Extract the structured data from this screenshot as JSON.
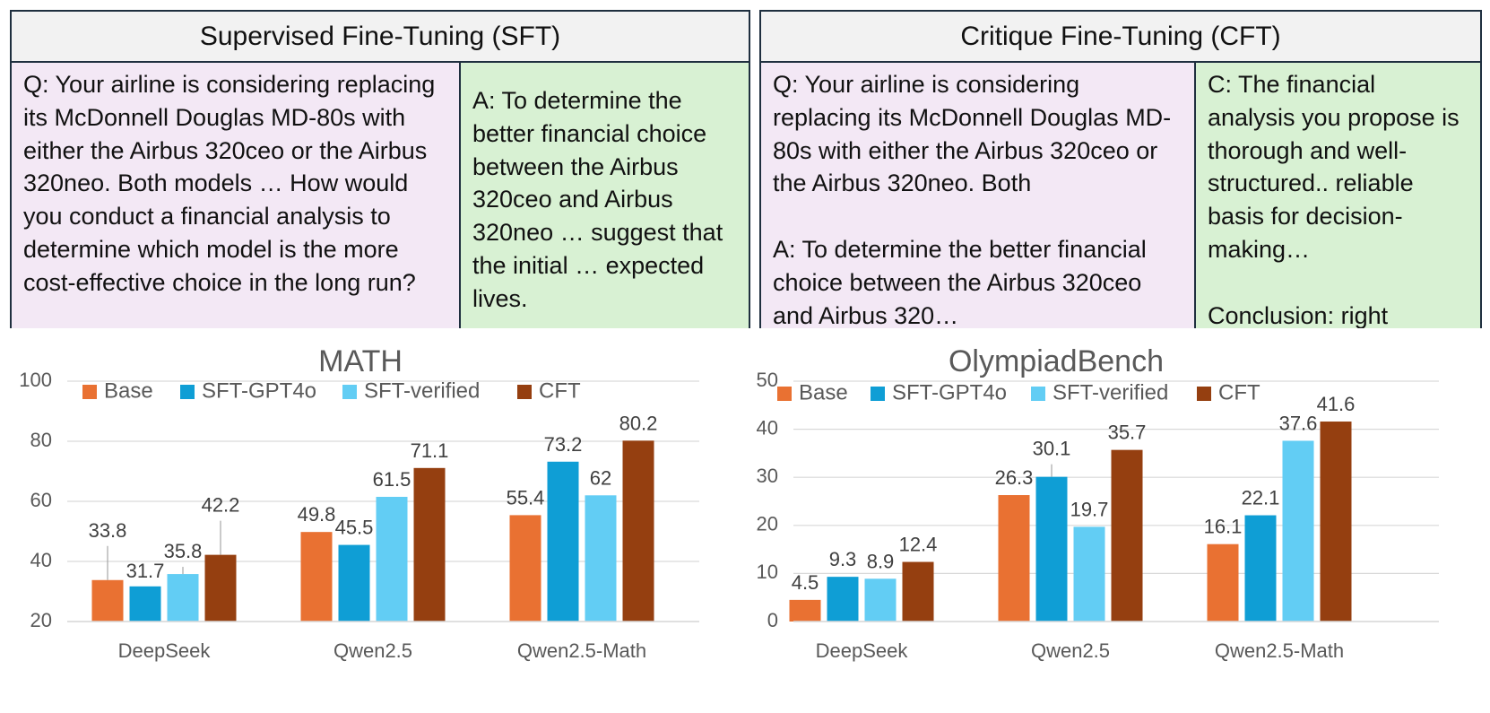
{
  "sft": {
    "title": "Supervised Fine-Tuning (SFT)",
    "question": "Q: Your airline is considering replacing its McDonnell Douglas MD-80s with either the Airbus 320ceo or the Airbus 320neo. Both models …  How would you conduct a financial analysis to determine which model is the more cost-effective choice in the long run?",
    "answer": "A: To determine the better financial choice between the Airbus 320ceo and Airbus 320neo … suggest that the initial … expected lives."
  },
  "cft": {
    "title": "Critique Fine-Tuning (CFT)",
    "question": "Q: Your airline is considering replacing its McDonnell Douglas MD-80s with either the Airbus 320ceo or the Airbus 320neo. Both\n\nA: To determine the better financial choice between the Airbus 320ceo and Airbus 320…",
    "critique": "C: The financial analysis you propose is thorough and well-structured.. reliable basis for decision-making…\n\nConclusion: right"
  },
  "chart_data": [
    {
      "type": "bar",
      "title": "MATH",
      "categories": [
        "DeepSeek",
        "Qwen2.5",
        "Qwen2.5-Math"
      ],
      "series": [
        {
          "name": "Base",
          "color": "#E97132",
          "values": [
            33.8,
            49.8,
            55.4
          ]
        },
        {
          "name": "SFT-GPT4o",
          "color": "#0F9ED5",
          "values": [
            31.7,
            45.5,
            73.2
          ]
        },
        {
          "name": "SFT-verified",
          "color": "#62CDF4",
          "values": [
            35.8,
            61.5,
            62
          ]
        },
        {
          "name": "CFT",
          "color": "#953F10",
          "values": [
            42.2,
            71.1,
            80.2
          ]
        }
      ],
      "ylim": [
        20,
        100
      ],
      "yticks": [
        20,
        40,
        60,
        80,
        100
      ],
      "legend": "top-left",
      "xlabel": "",
      "ylabel": ""
    },
    {
      "type": "bar",
      "title": "OlympiadBench",
      "categories": [
        "DeepSeek",
        "Qwen2.5",
        "Qwen2.5-Math"
      ],
      "series": [
        {
          "name": "Base",
          "color": "#E97132",
          "values": [
            4.5,
            26.3,
            16.1
          ]
        },
        {
          "name": "SFT-GPT4o",
          "color": "#0F9ED5",
          "values": [
            9.3,
            30.1,
            22.1
          ]
        },
        {
          "name": "SFT-verified",
          "color": "#62CDF4",
          "values": [
            8.9,
            19.7,
            37.6
          ]
        },
        {
          "name": "CFT",
          "color": "#953F10",
          "values": [
            12.4,
            35.7,
            41.6
          ]
        }
      ],
      "ylim": [
        0,
        50
      ],
      "yticks": [
        0,
        10,
        20,
        30,
        40,
        50
      ],
      "legend": "top-left",
      "xlabel": "",
      "ylabel": ""
    }
  ]
}
